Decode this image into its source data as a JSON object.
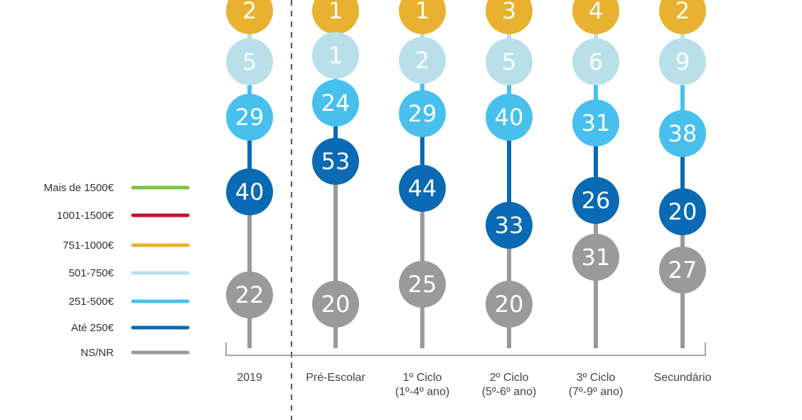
{
  "chart_data": {
    "type": "dot-stack",
    "title": "",
    "categories": [
      {
        "line1": "2019",
        "line2": ""
      },
      {
        "line1": "Pré-Escolar",
        "line2": ""
      },
      {
        "line1": "1º Ciclo",
        "line2": "(1º-4º ano)"
      },
      {
        "line1": "2º Ciclo",
        "line2": "(5º-6º ano)"
      },
      {
        "line1": "3º Ciclo",
        "line2": "(7º-9º ano)"
      },
      {
        "line1": "Secundário",
        "line2": ""
      }
    ],
    "series": [
      {
        "name": "Mais de 1500€",
        "color": "#7dc243",
        "values": [
          null,
          null,
          null,
          null,
          null,
          null
        ]
      },
      {
        "name": "1001-1500€",
        "color": "#c8102e",
        "values": [
          null,
          null,
          null,
          null,
          null,
          null
        ]
      },
      {
        "name": "751-1000€",
        "color": "#e8b130",
        "values": [
          2,
          1,
          1,
          3,
          4,
          2
        ]
      },
      {
        "name": "501-750€",
        "color": "#b9e0e9",
        "values": [
          5,
          1,
          2,
          5,
          6,
          9
        ]
      },
      {
        "name": "251-500€",
        "color": "#47c0ee",
        "values": [
          29,
          24,
          29,
          40,
          31,
          38
        ]
      },
      {
        "name": "Até 250€",
        "color": "#0a6ab3",
        "values": [
          40,
          53,
          44,
          33,
          26,
          20
        ]
      },
      {
        "name": "NS/NR",
        "color": "#9a9a9a",
        "values": [
          22,
          20,
          25,
          20,
          31,
          27
        ]
      }
    ],
    "legend_position": "left"
  }
}
